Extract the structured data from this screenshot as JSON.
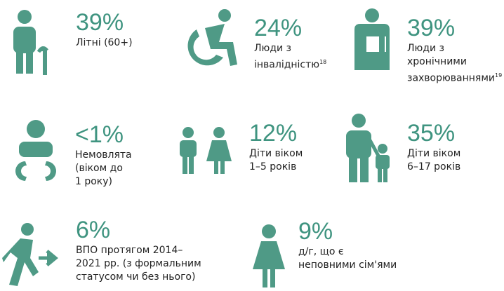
{
  "items": [
    {
      "value": "39%",
      "lines": [
        "Літні (60+)"
      ]
    },
    {
      "value": "24%",
      "lines": [
        "Люди з",
        "інвалідністю"
      ],
      "note": "18"
    },
    {
      "value": "39%",
      "lines": [
        "Люди з",
        "хронічними",
        "захворюваннями"
      ],
      "note": "19"
    },
    {
      "value": "<1%",
      "lines": [
        "Немовлята",
        "(віком до",
        "1 року)"
      ]
    },
    {
      "value": "12%",
      "lines": [
        "Діти віком",
        "1–5 років"
      ]
    },
    {
      "value": "35%",
      "lines": [
        "Діти віком",
        "6–17 років"
      ]
    },
    {
      "value": "6%",
      "lines": [
        "ВПО протягом 2014–",
        "2021 рр. (з формальним",
        "статусом чи без нього)"
      ]
    },
    {
      "value": "9%",
      "lines": [
        "д/г,  що є",
        "неповними сім'ями"
      ]
    }
  ]
}
